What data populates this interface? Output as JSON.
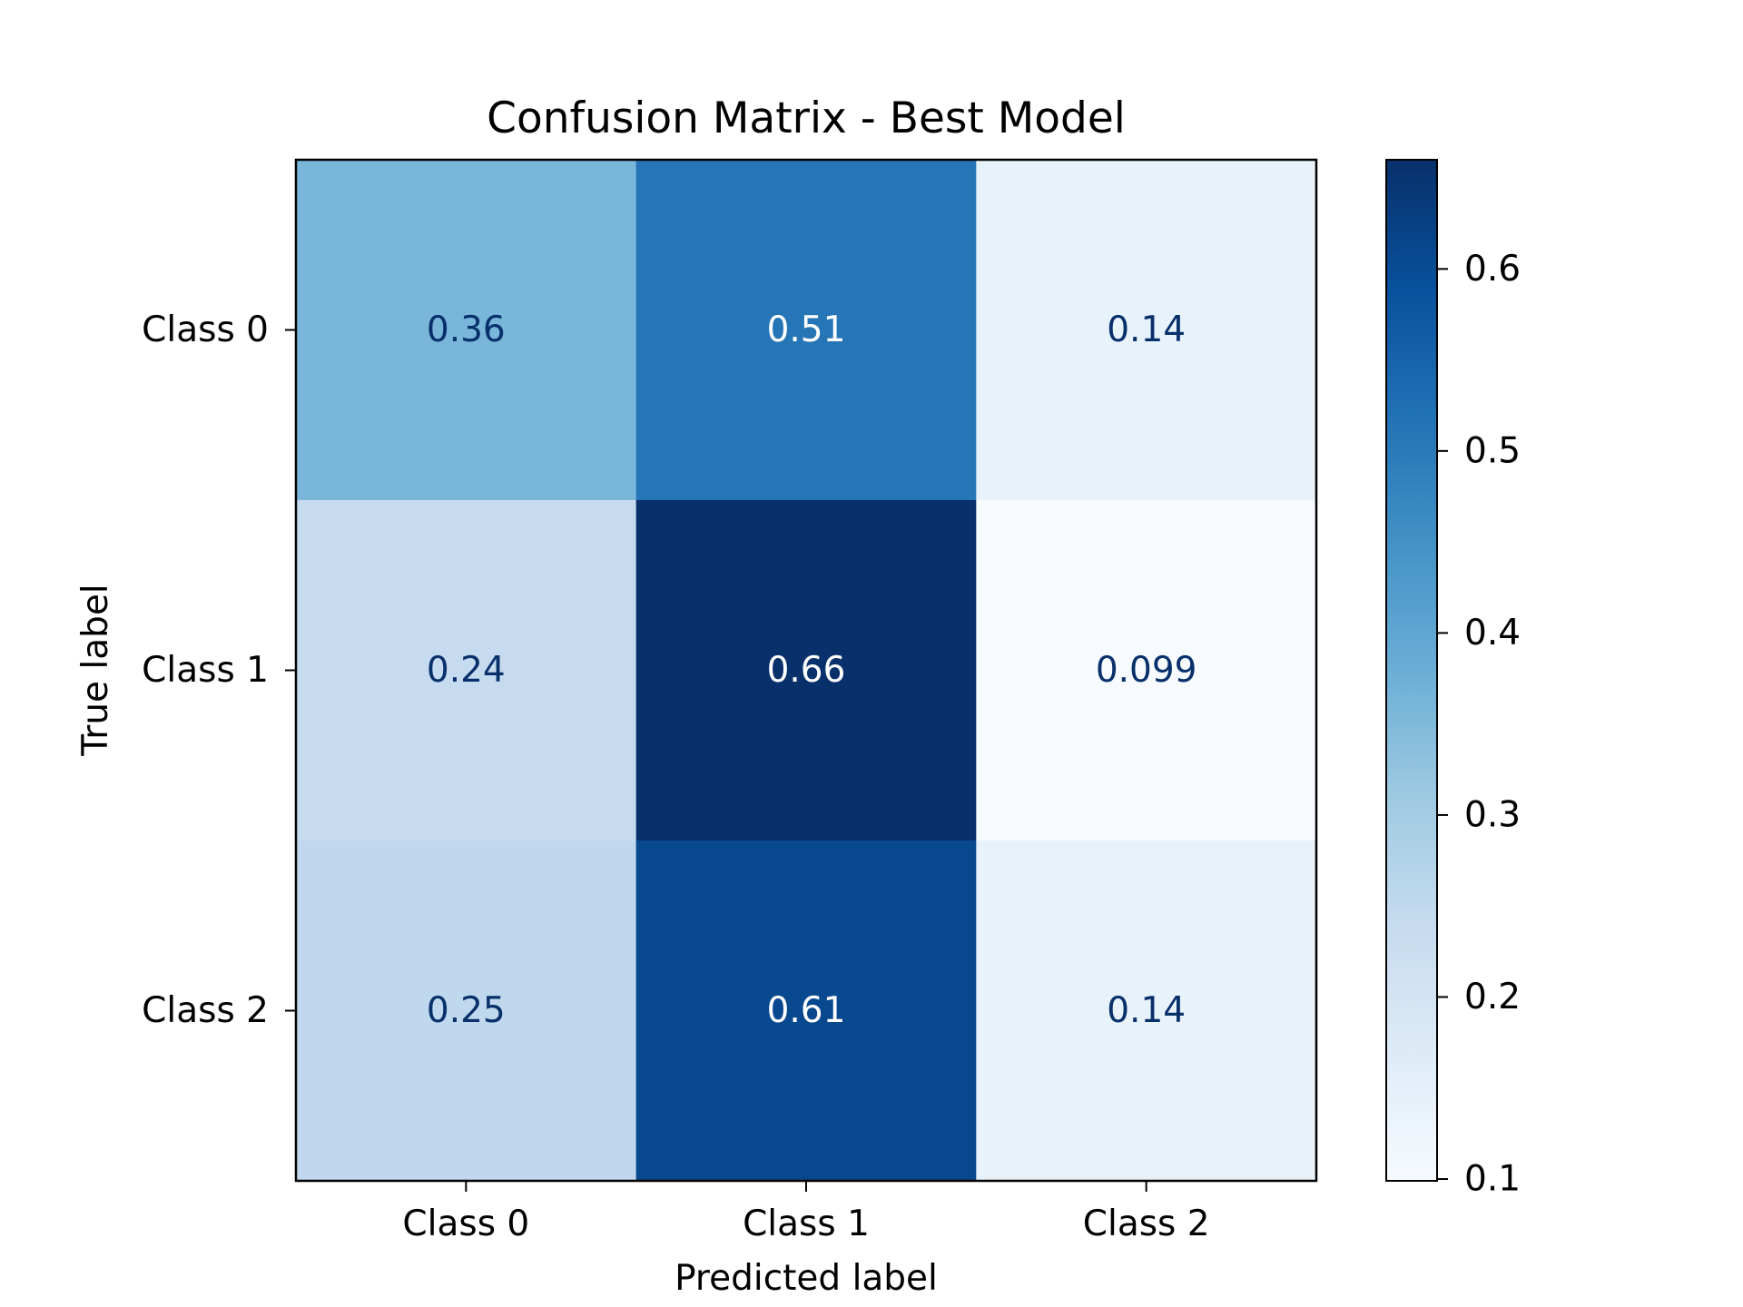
{
  "chart_data": {
    "type": "heatmap",
    "title": "Confusion Matrix - Best Model",
    "xlabel": "Predicted label",
    "ylabel": "True label",
    "x_categories": [
      "Class 0",
      "Class 1",
      "Class 2"
    ],
    "y_categories": [
      "Class 0",
      "Class 1",
      "Class 2"
    ],
    "values": [
      [
        0.36,
        0.51,
        0.14
      ],
      [
        0.24,
        0.66,
        0.099
      ],
      [
        0.25,
        0.61,
        0.14
      ]
    ],
    "cell_labels": [
      [
        "0.36",
        "0.51",
        "0.14"
      ],
      [
        "0.24",
        "0.66",
        "0.099"
      ],
      [
        "0.25",
        "0.61",
        "0.14"
      ]
    ],
    "colormap": "Blues",
    "colorbar": {
      "min": 0.099,
      "max": 0.66,
      "ticks": [
        0.1,
        0.2,
        0.3,
        0.4,
        0.5,
        0.6
      ],
      "tick_labels": [
        "0.1",
        "0.2",
        "0.3",
        "0.4",
        "0.5",
        "0.6"
      ]
    },
    "text_colors": {
      "light": "#ffffff",
      "dark": "#08306b"
    },
    "grid": false
  }
}
